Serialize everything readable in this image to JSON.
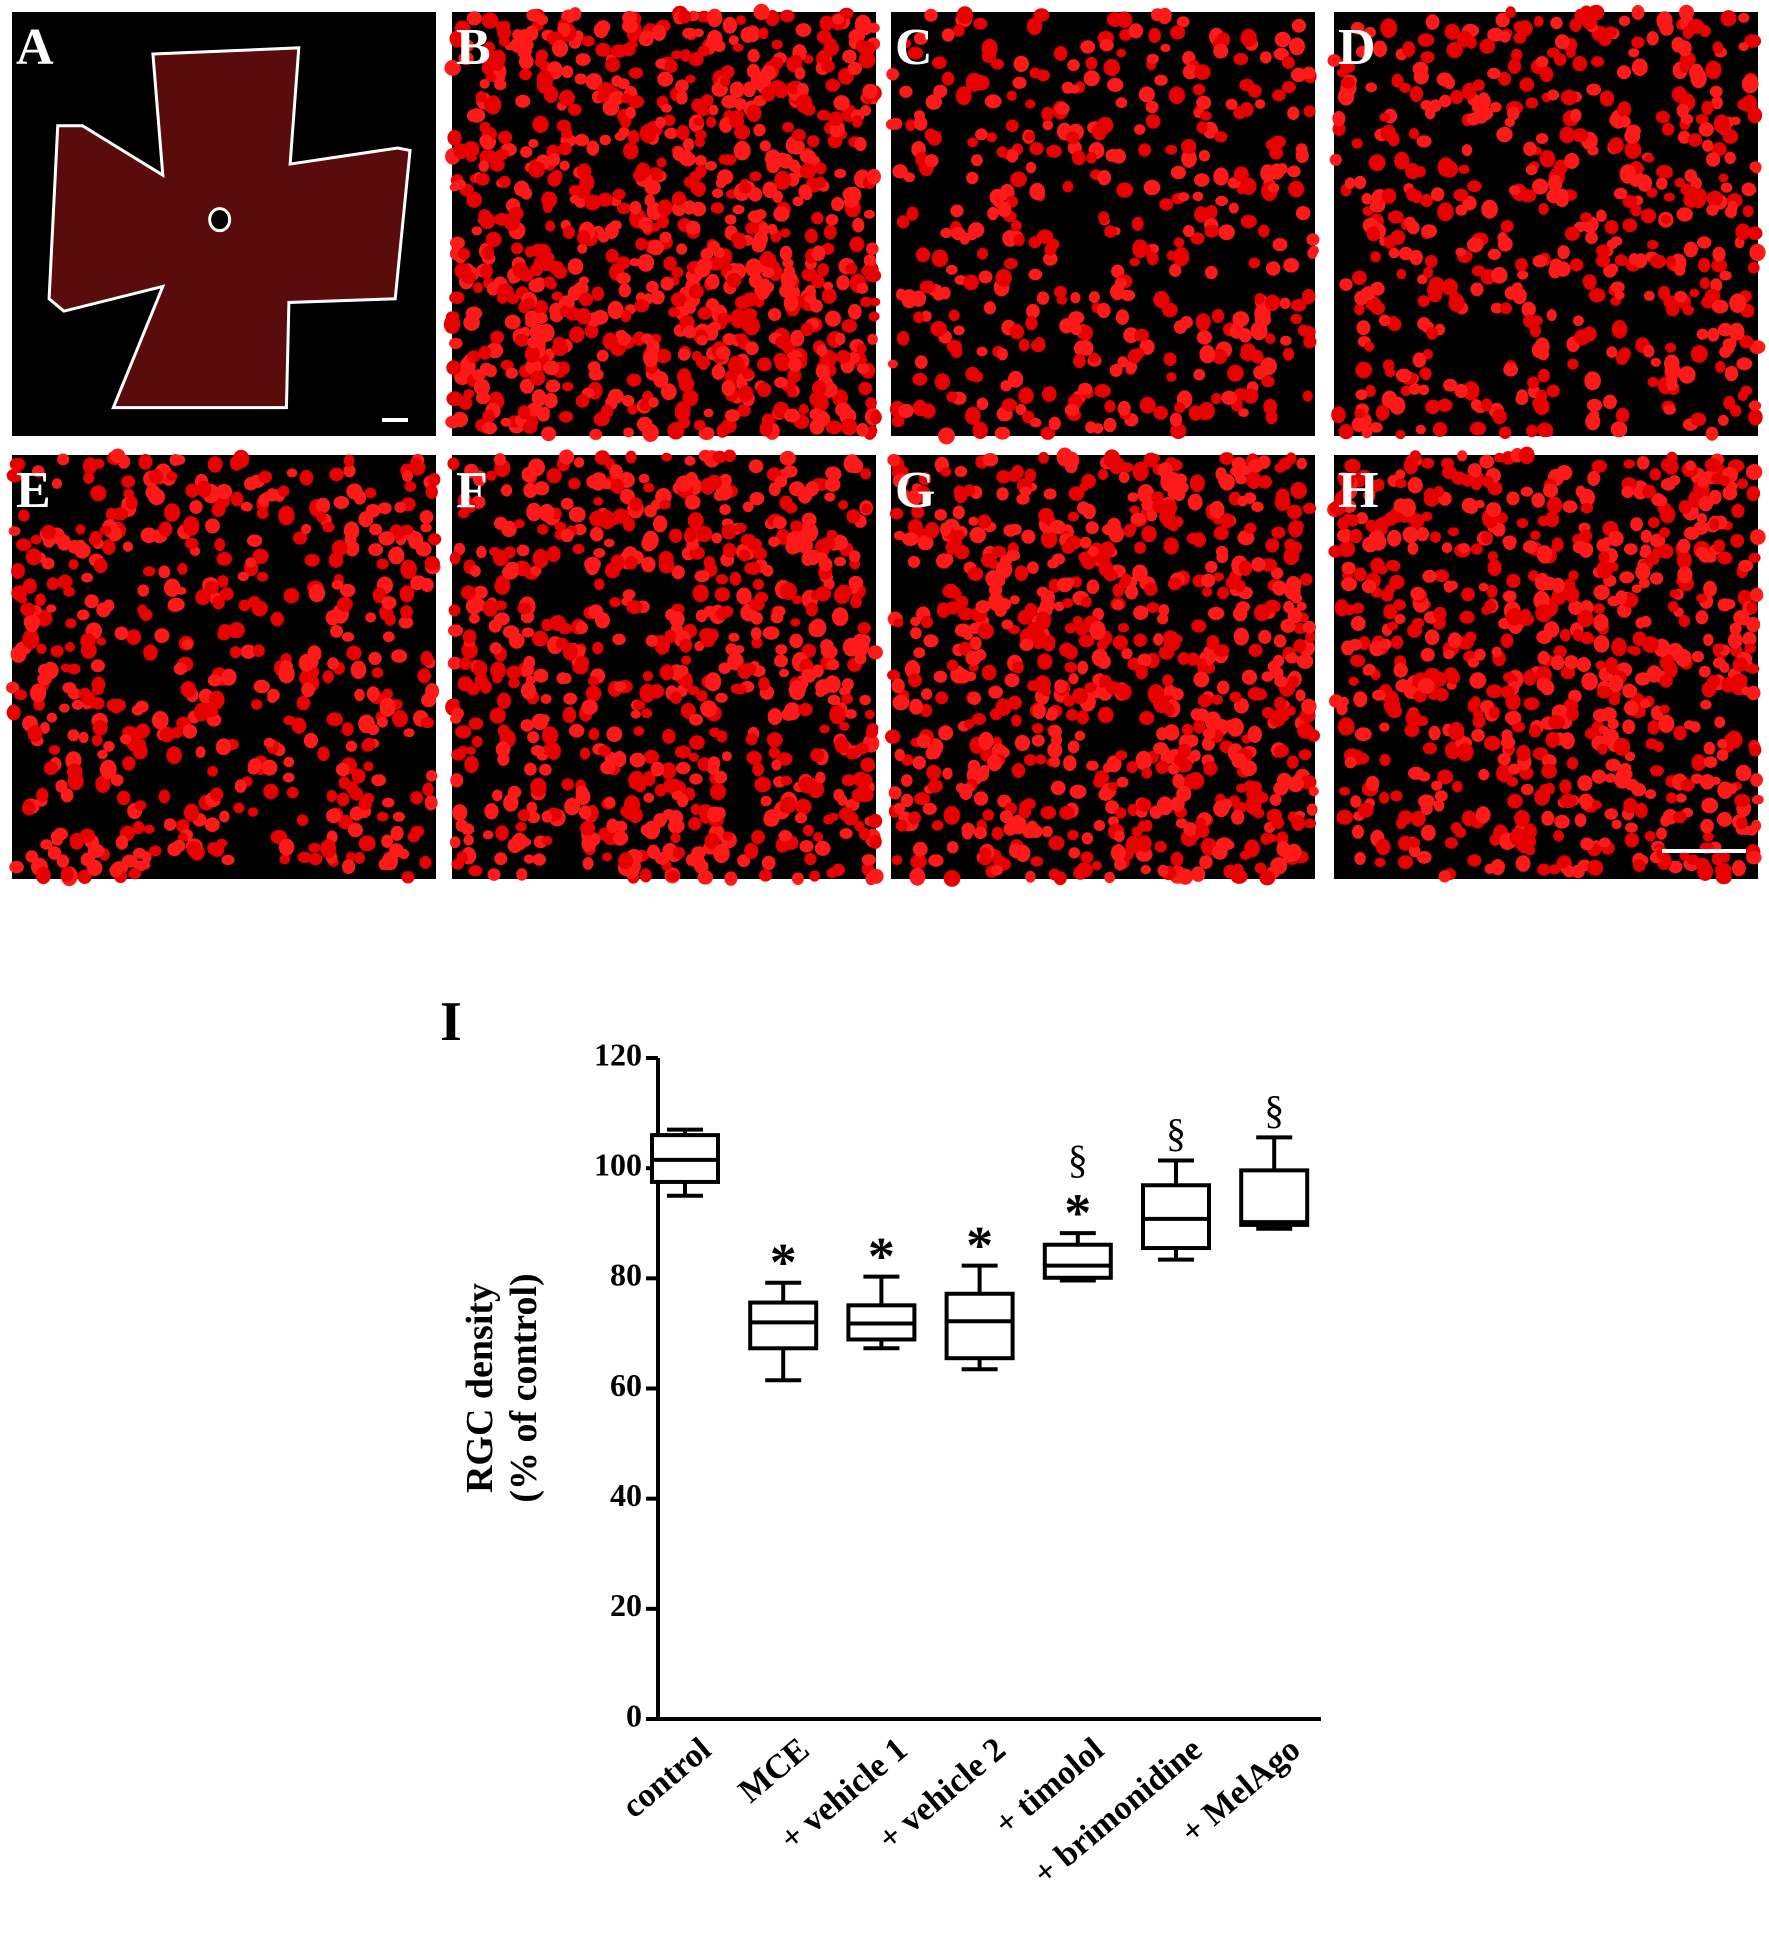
{
  "panels": [
    "A",
    "B",
    "C",
    "D",
    "E",
    "F",
    "G",
    "H"
  ],
  "chart_data": {
    "type": "box",
    "panel_label": "I",
    "y_label": [
      "RGC density",
      "(% of control)"
    ],
    "categories": [
      "control",
      "MCE",
      "+ vehicle 1",
      "+ vehicle 2",
      "+ timolol",
      "+ brimonidine",
      "+ MelAgo"
    ],
    "color": "#000000",
    "boxes": [
      {
        "min": 95,
        "q1": 97.5,
        "median": 101.5,
        "q3": 106,
        "max": 107
      },
      {
        "min": 61.5,
        "q1": 67.3,
        "median": 72,
        "q3": 75.6,
        "max": 79.2
      },
      {
        "min": 67.3,
        "q1": 68.9,
        "median": 71.8,
        "q3": 75.1,
        "max": 80.3
      },
      {
        "min": 63.5,
        "q1": 65.5,
        "median": 72.2,
        "q3": 77.2,
        "max": 82.3
      },
      {
        "min": 79.6,
        "q1": 80.1,
        "median": 82.3,
        "q3": 86.1,
        "max": 88.2
      },
      {
        "min": 83.4,
        "q1": 85.5,
        "median": 90.8,
        "q3": 96.9,
        "max": 101.4
      },
      {
        "min": 89,
        "q1": 89.7,
        "median": 90.2,
        "q3": 99.6,
        "max": 105.6
      }
    ],
    "annotations": [
      {
        "category": "MCE",
        "text": "*"
      },
      {
        "category": "+ vehicle 1",
        "text": "*"
      },
      {
        "category": "+ vehicle 2",
        "text": "*"
      },
      {
        "category": "+ timolol",
        "text": "*"
      },
      {
        "category": "+ timolol",
        "text": "§"
      },
      {
        "category": "+ brimonidine",
        "text": "§"
      },
      {
        "category": "+ MelAgo",
        "text": "§"
      }
    ],
    "ylim": [
      0,
      120
    ],
    "yticks": [
      0,
      20,
      40,
      60,
      80,
      100,
      120
    ]
  }
}
